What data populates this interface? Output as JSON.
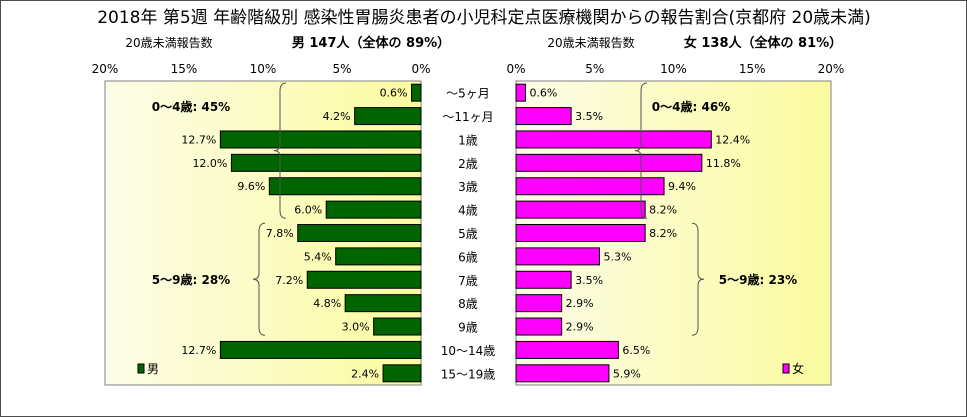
{
  "chart_data": {
    "type": "bar",
    "title": "2018年 第5週 年齢階級別 感染性胃腸炎患者の小児科定点医療機関からの報告割合(京都府 20歳未満)",
    "categories": [
      "～5ヶ月",
      "～11ヶ月",
      "1歳",
      "2歳",
      "3歳",
      "4歳",
      "5歳",
      "6歳",
      "7歳",
      "8歳",
      "9歳",
      "10～14歳",
      "15～19歳"
    ],
    "tick_values": [
      0,
      5,
      10,
      15,
      20
    ],
    "xlim": [
      0,
      20
    ],
    "grid": false,
    "series": [
      {
        "name": "男",
        "header_label": "20歳未満報告数",
        "header_count": "男 147人（全体の 89%）",
        "values": [
          0.6,
          4.2,
          12.7,
          12.0,
          9.6,
          6.0,
          7.8,
          5.4,
          7.2,
          4.8,
          3.0,
          12.7,
          2.4
        ],
        "color": "#006400",
        "legend_position": "bottom-left",
        "groups": [
          {
            "label": "0～4歳: 45%",
            "from": 0,
            "to": 5
          },
          {
            "label": "5～9歳: 28%",
            "from": 6,
            "to": 10
          }
        ]
      },
      {
        "name": "女",
        "header_label": "20歳未満報告数",
        "header_count": "女 138人（全体の 81%）",
        "values": [
          0.6,
          3.5,
          12.4,
          11.8,
          9.4,
          8.2,
          8.2,
          5.3,
          3.5,
          2.9,
          2.9,
          6.5,
          5.9
        ],
        "color": "#ff00ff",
        "legend_position": "bottom-right",
        "groups": [
          {
            "label": "0～4歳: 46%",
            "from": 0,
            "to": 5
          },
          {
            "label": "5～9歳: 23%",
            "from": 6,
            "to": 10
          }
        ]
      }
    ]
  }
}
